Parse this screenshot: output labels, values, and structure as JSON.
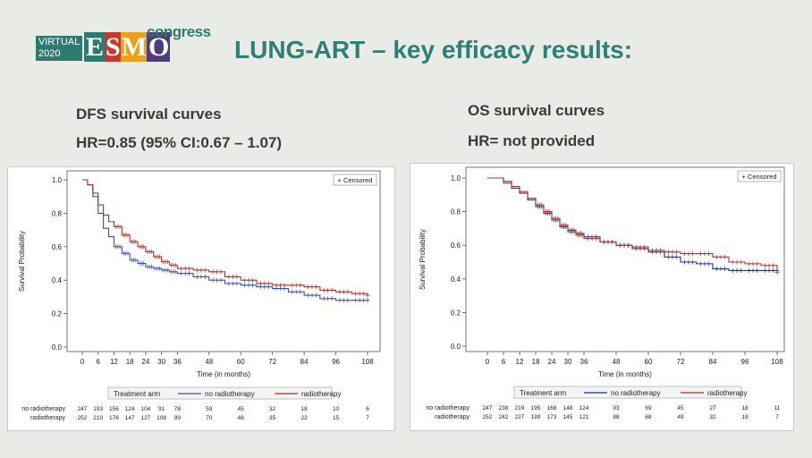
{
  "header": {
    "logo_virtual": "VIRTUAL",
    "logo_year": "2020",
    "logo_esmo": "ESMO",
    "logo_congress": "congress",
    "title": "LUNG-ART – key efficacy results:"
  },
  "left": {
    "heading": "DFS survival curves",
    "hr": "HR=0.85 (95% CI:0.67 – 1.07)"
  },
  "right": {
    "heading": "OS survival curves",
    "hr": "HR= not provided"
  },
  "chart_data": [
    {
      "type": "line",
      "subtype": "kaplan-meier",
      "ylabel": "Survival Probability",
      "xlabel": "Time (in months)",
      "xlim": [
        0,
        108
      ],
      "ylim": [
        0.0,
        1.0
      ],
      "xticks": [
        0,
        6,
        12,
        18,
        24,
        30,
        36,
        48,
        60,
        72,
        84,
        96,
        108
      ],
      "yticks": [
        "0.0",
        "0.2",
        "0.4",
        "0.6",
        "0.8",
        "1.0"
      ],
      "censored_label": "+ Censored",
      "legend_title": "Treatment arm",
      "colors": {
        "no radiotherapy": "#3b4fa0",
        "radiotherapy": "#a8322b"
      },
      "series": [
        {
          "name": "no radiotherapy",
          "x": [
            0,
            2,
            4,
            6,
            8,
            10,
            12,
            15,
            18,
            21,
            24,
            27,
            30,
            33,
            36,
            42,
            48,
            54,
            60,
            66,
            72,
            78,
            84,
            90,
            96,
            102,
            108
          ],
          "y": [
            1.0,
            0.97,
            0.9,
            0.8,
            0.71,
            0.66,
            0.6,
            0.56,
            0.52,
            0.5,
            0.48,
            0.47,
            0.46,
            0.45,
            0.44,
            0.42,
            0.4,
            0.38,
            0.37,
            0.36,
            0.35,
            0.33,
            0.31,
            0.29,
            0.28,
            0.28,
            0.28
          ]
        },
        {
          "name": "radiotherapy",
          "x": [
            0,
            2,
            4,
            6,
            8,
            10,
            12,
            15,
            18,
            21,
            24,
            27,
            30,
            33,
            36,
            42,
            48,
            54,
            60,
            66,
            72,
            78,
            84,
            90,
            96,
            102,
            108
          ],
          "y": [
            1.0,
            0.97,
            0.92,
            0.85,
            0.79,
            0.75,
            0.72,
            0.67,
            0.63,
            0.6,
            0.57,
            0.54,
            0.51,
            0.49,
            0.47,
            0.46,
            0.45,
            0.42,
            0.4,
            0.38,
            0.37,
            0.37,
            0.36,
            0.34,
            0.33,
            0.32,
            0.31
          ]
        }
      ],
      "at_risk": {
        "x": [
          0,
          6,
          12,
          18,
          24,
          30,
          36,
          48,
          60,
          72,
          84,
          96,
          108
        ],
        "rows": [
          {
            "name": "no radiotherapy",
            "values": [
              "247",
              "193",
              "156",
              "124",
              "104",
              "91",
              "78",
              "59",
              "45",
              "32",
              "18",
              "10",
              "6"
            ]
          },
          {
            "name": "radiotherapy",
            "values": [
              "252",
              "210",
              "176",
              "147",
              "127",
              "108",
              "89",
              "70",
              "48",
              "35",
              "22",
              "15",
              "7"
            ]
          }
        ]
      }
    },
    {
      "type": "line",
      "subtype": "kaplan-meier",
      "ylabel": "Survival Probability",
      "xlabel": "Time (in months)",
      "xlim": [
        0,
        108
      ],
      "ylim": [
        0.0,
        1.0
      ],
      "xticks": [
        0,
        6,
        12,
        18,
        24,
        30,
        36,
        48,
        60,
        72,
        84,
        96,
        108
      ],
      "yticks": [
        "0.0",
        "0.2",
        "0.4",
        "0.6",
        "0.8",
        "1.0"
      ],
      "censored_label": "+ Censored",
      "legend_title": "Treatment arm",
      "colors": {
        "no radiotherapy": "#1f2f80",
        "radiotherapy": "#a8322b"
      },
      "series": [
        {
          "name": "no radiotherapy",
          "x": [
            0,
            3,
            6,
            9,
            12,
            15,
            18,
            21,
            24,
            27,
            30,
            33,
            36,
            42,
            48,
            54,
            60,
            66,
            72,
            78,
            84,
            90,
            96,
            102,
            108
          ],
          "y": [
            1.0,
            1.0,
            0.98,
            0.94,
            0.91,
            0.87,
            0.83,
            0.79,
            0.75,
            0.71,
            0.69,
            0.67,
            0.65,
            0.62,
            0.6,
            0.58,
            0.56,
            0.53,
            0.5,
            0.49,
            0.46,
            0.45,
            0.45,
            0.45,
            0.45
          ]
        },
        {
          "name": "radiotherapy",
          "x": [
            0,
            3,
            6,
            9,
            12,
            15,
            18,
            21,
            24,
            27,
            30,
            33,
            36,
            42,
            48,
            54,
            60,
            66,
            72,
            78,
            84,
            90,
            96,
            102,
            108
          ],
          "y": [
            1.0,
            1.0,
            0.97,
            0.95,
            0.92,
            0.88,
            0.84,
            0.8,
            0.76,
            0.72,
            0.68,
            0.66,
            0.64,
            0.62,
            0.6,
            0.59,
            0.57,
            0.56,
            0.55,
            0.55,
            0.53,
            0.5,
            0.49,
            0.48,
            0.44
          ]
        }
      ],
      "at_risk": {
        "x": [
          0,
          6,
          12,
          18,
          24,
          30,
          36,
          48,
          60,
          72,
          84,
          96,
          108
        ],
        "rows": [
          {
            "name": "no radiotherapy",
            "values": [
              "247",
              "238",
              "219",
              "195",
              "168",
              "148",
              "124",
              "93",
              "69",
              "45",
              "27",
              "18",
              "11"
            ]
          },
          {
            "name": "radiotherapy",
            "values": [
              "252",
              "242",
              "227",
              "199",
              "173",
              "145",
              "121",
              "88",
              "68",
              "49",
              "32",
              "19",
              "7"
            ]
          }
        ]
      }
    }
  ]
}
